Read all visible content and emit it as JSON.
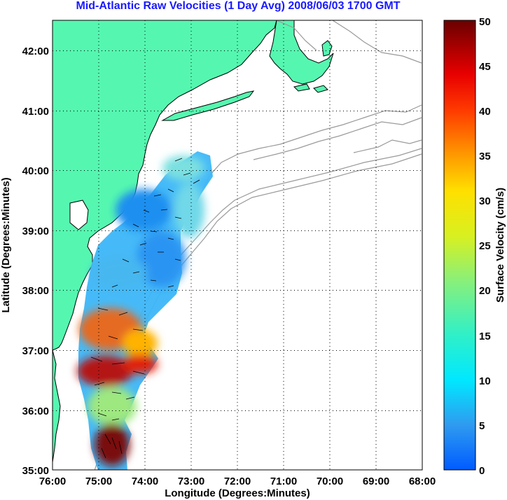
{
  "title": "Mid-Atlantic Raw Velocities (1 Day Avg) 2008/06/03 1700 GMT",
  "map": {
    "xlabel": "Longitude (Degrees:Minutes)",
    "ylabel": "Latitude (Degrees:Minutes)",
    "lon_range": [
      -76,
      -68
    ],
    "lat_range": [
      35,
      42.5
    ],
    "grid": true,
    "x_ticks": [
      "76:00",
      "75:00",
      "74:00",
      "73:00",
      "72:00",
      "71:00",
      "70:00",
      "69:00",
      "68:00"
    ],
    "y_ticks": [
      "35:00",
      "36:00",
      "37:00",
      "38:00",
      "39:00",
      "40:00",
      "41:00",
      "42:00"
    ]
  },
  "colorbar": {
    "label": "Surface Velocity (cm/s)",
    "range": [
      0,
      50
    ],
    "ticks": [
      "0",
      "5",
      "10",
      "15",
      "20",
      "25",
      "30",
      "35",
      "40",
      "45",
      "50"
    ]
  },
  "colors": {
    "title": "#1a1aff",
    "land": "#55f7b0",
    "coast": "#000000",
    "bathymetry": "#9a9a9a",
    "grid": "#000000"
  }
}
